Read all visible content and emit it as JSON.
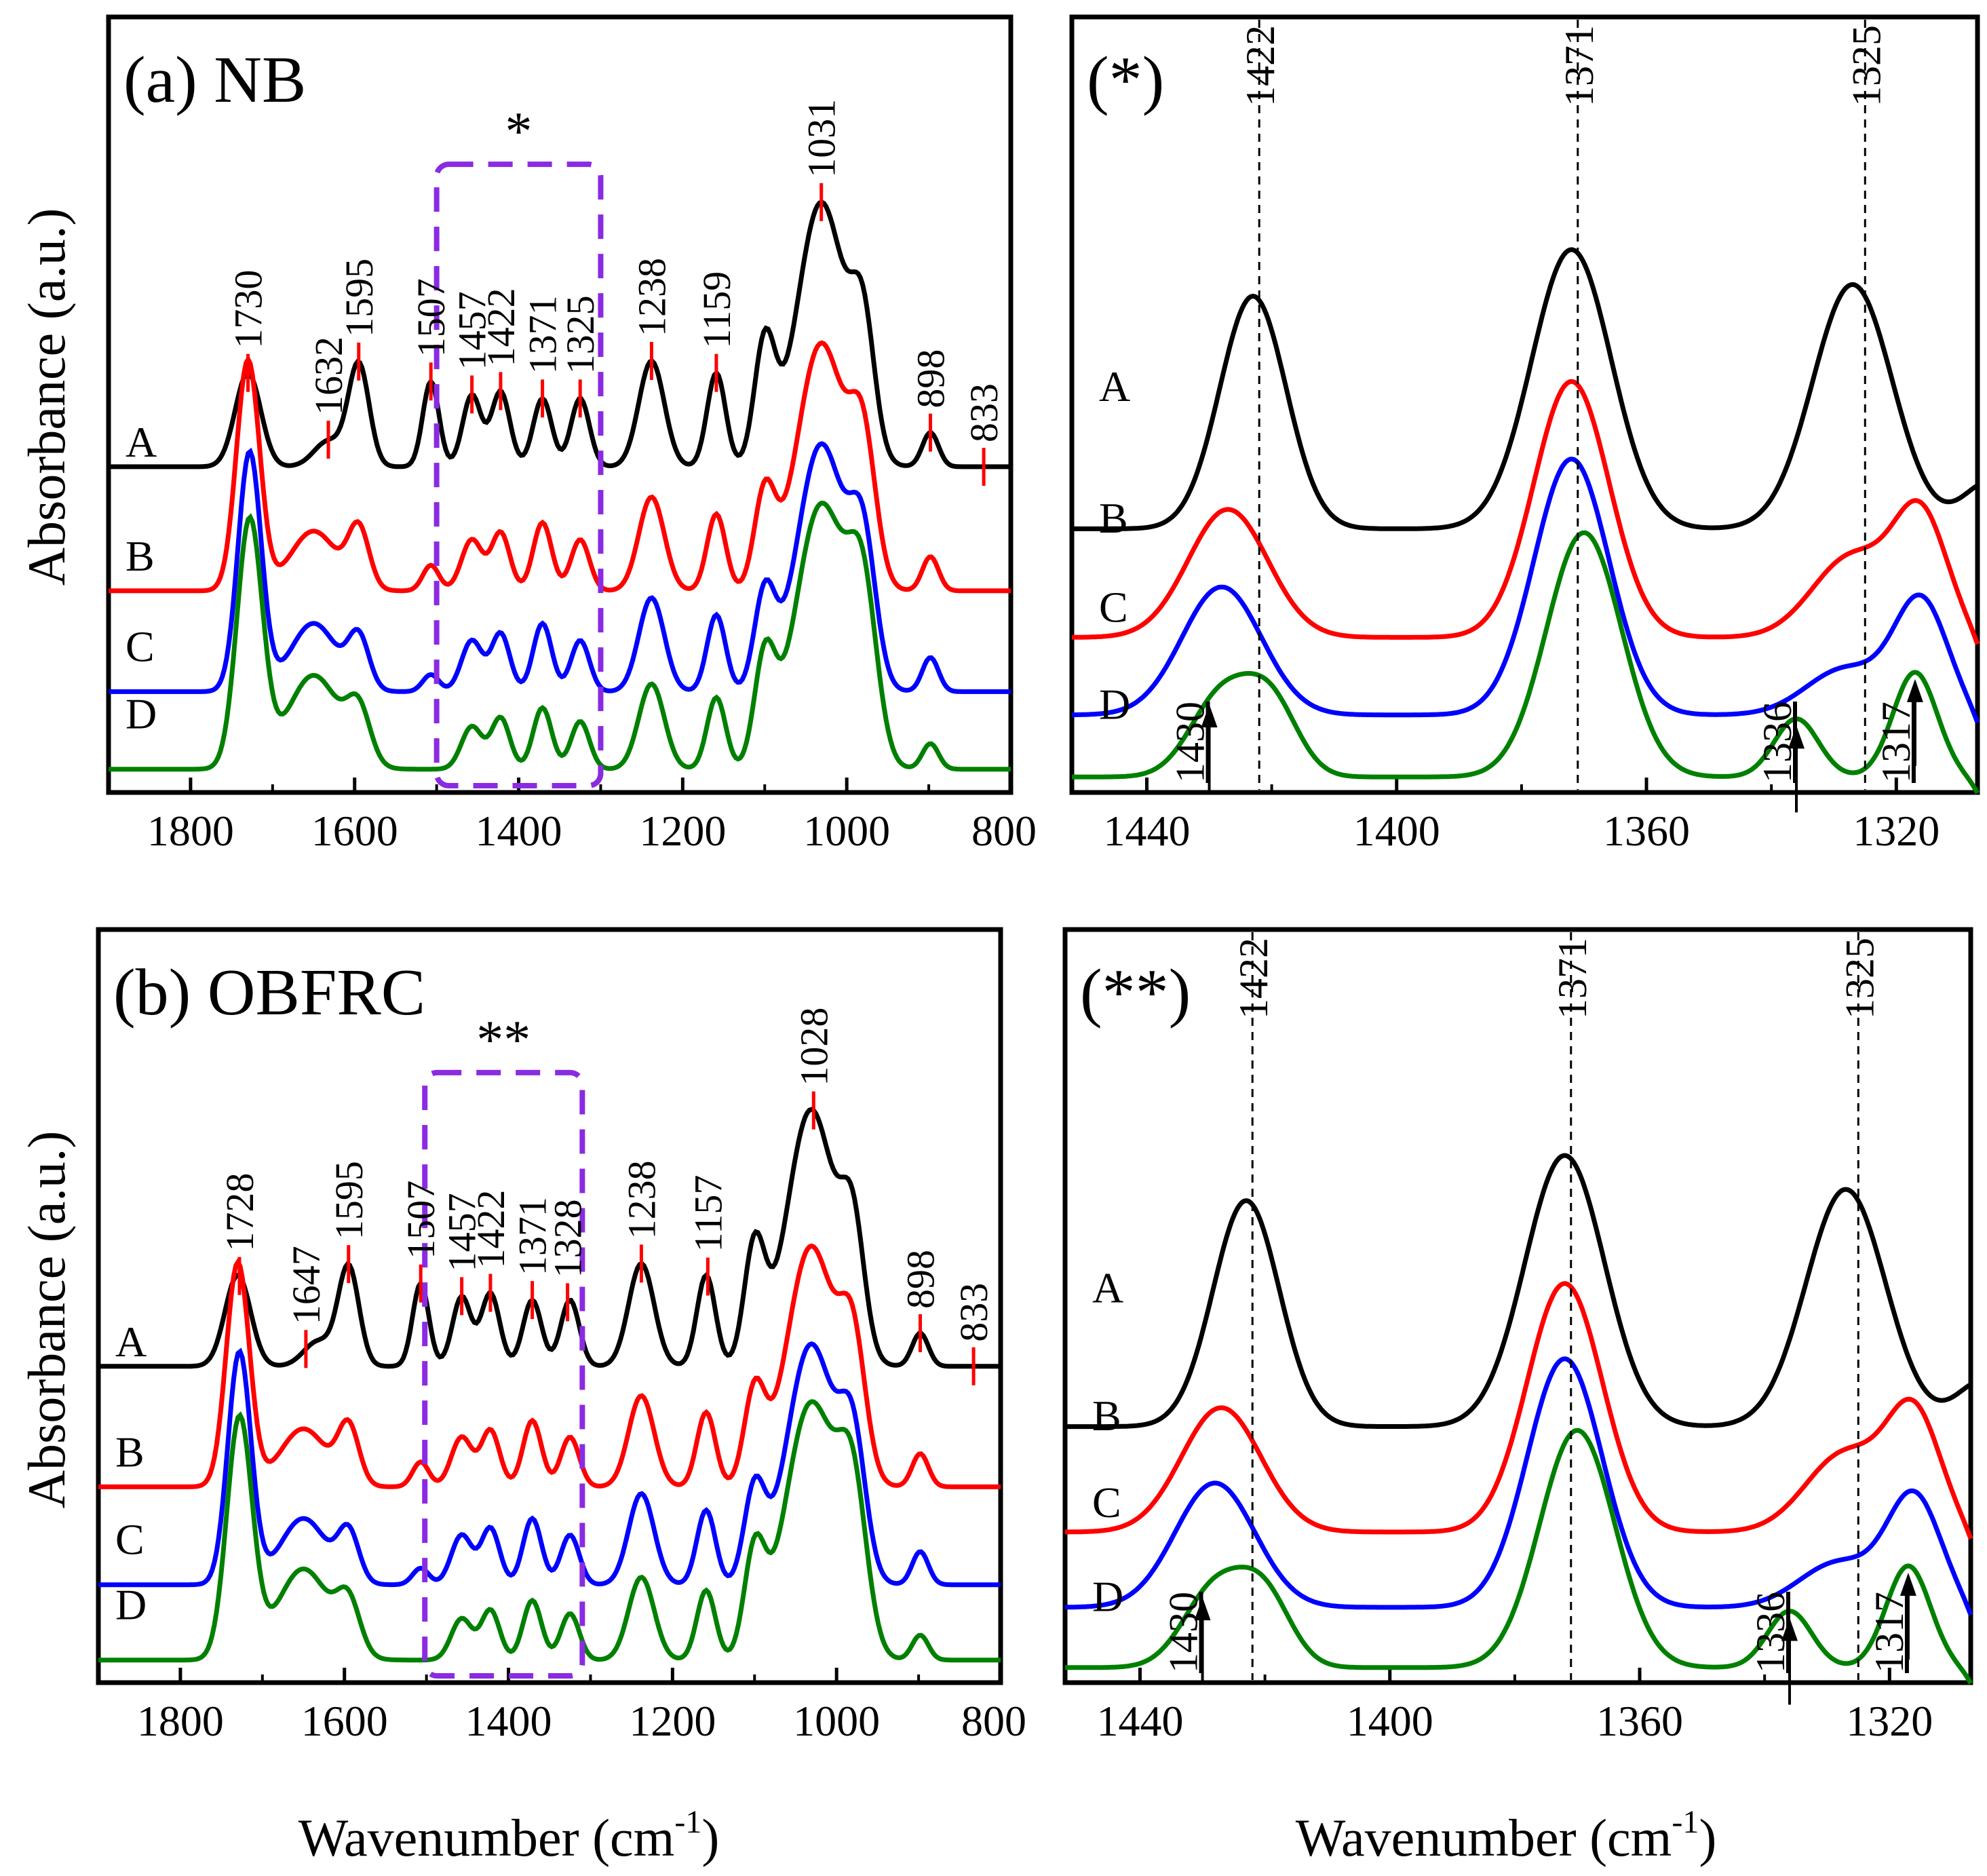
{
  "colors": {
    "A": "#000000",
    "B": "#ff0000",
    "C": "#0000ff",
    "D": "#008000",
    "marker": "#ff0000",
    "box": "#8a2be2"
  },
  "axis_labels": {
    "ylabel": "Absorbance (a.u.)",
    "xlabel_main": "Wavenumber (cm",
    "xlabel_sup": "-1",
    "xlabel_close": ")"
  },
  "chart_data": [
    {
      "id": "a",
      "type": "line",
      "title": "(a) NB",
      "box_label": "*",
      "box_range": [
        1500,
        1300
      ],
      "xlim": [
        1900,
        800
      ],
      "xticks": [
        "1800",
        "1600",
        "1400",
        "1200",
        "1000",
        "800"
      ],
      "xtick_values": [
        1800,
        1600,
        1400,
        1200,
        1000,
        800
      ],
      "series_labels": [
        "A",
        "B",
        "C",
        "D"
      ],
      "peaks": [
        {
          "label": "1730",
          "x": 1730
        },
        {
          "label": "1632",
          "x": 1632
        },
        {
          "label": "1595",
          "x": 1595
        },
        {
          "label": "1507",
          "x": 1507
        },
        {
          "label": "1457",
          "x": 1457
        },
        {
          "label": "1422",
          "x": 1422
        },
        {
          "label": "1371",
          "x": 1371
        },
        {
          "label": "1325",
          "x": 1325
        },
        {
          "label": "1238",
          "x": 1238
        },
        {
          "label": "1159",
          "x": 1159
        },
        {
          "label": "1031",
          "x": 1031
        },
        {
          "label": "898",
          "x": 898
        },
        {
          "label": "833",
          "x": 833
        }
      ]
    },
    {
      "id": "star",
      "type": "line",
      "title": "(*)",
      "xlim": [
        1452,
        1307
      ],
      "xticks": [
        "1440",
        "1400",
        "1360",
        "1320"
      ],
      "xtick_values": [
        1440,
        1400,
        1360,
        1320
      ],
      "dashed_lines": [
        {
          "label": "1422",
          "x": 1422
        },
        {
          "label": "1371",
          "x": 1371
        },
        {
          "label": "1325",
          "x": 1325
        }
      ],
      "series_labels": [
        "A",
        "B",
        "C",
        "D"
      ],
      "arrows": [
        {
          "label": "1430",
          "x": 1430
        },
        {
          "label": "1336",
          "x": 1336
        },
        {
          "label": "1317",
          "x": 1317
        }
      ]
    },
    {
      "id": "b",
      "type": "line",
      "title": "(b) OBFRC",
      "box_label": "**",
      "box_range": [
        1502,
        1310
      ],
      "xlim": [
        1900,
        800
      ],
      "xticks": [
        "1800",
        "1600",
        "1400",
        "1200",
        "1000",
        "800"
      ],
      "xtick_values": [
        1800,
        1600,
        1400,
        1200,
        1000,
        800
      ],
      "series_labels": [
        "A",
        "B",
        "C",
        "D"
      ],
      "peaks": [
        {
          "label": "1728",
          "x": 1728
        },
        {
          "label": "1647",
          "x": 1647
        },
        {
          "label": "1595",
          "x": 1595
        },
        {
          "label": "1507",
          "x": 1507
        },
        {
          "label": "1457",
          "x": 1457
        },
        {
          "label": "1422",
          "x": 1422
        },
        {
          "label": "1371",
          "x": 1371
        },
        {
          "label": "1328",
          "x": 1328
        },
        {
          "label": "1238",
          "x": 1238
        },
        {
          "label": "1157",
          "x": 1157
        },
        {
          "label": "1028",
          "x": 1028
        },
        {
          "label": "898",
          "x": 898
        },
        {
          "label": "833",
          "x": 833
        }
      ]
    },
    {
      "id": "dstar",
      "type": "line",
      "title": "(**)",
      "xlim": [
        1452,
        1307
      ],
      "xticks": [
        "1440",
        "1400",
        "1360",
        "1320"
      ],
      "xtick_values": [
        1440,
        1400,
        1360,
        1320
      ],
      "dashed_lines": [
        {
          "label": "1422",
          "x": 1422
        },
        {
          "label": "1371",
          "x": 1371
        },
        {
          "label": "1325",
          "x": 1325
        }
      ],
      "series_labels": [
        "A",
        "B",
        "C",
        "D"
      ],
      "arrows": [
        {
          "label": "1430",
          "x": 1430
        },
        {
          "label": "1336",
          "x": 1336
        },
        {
          "label": "1317",
          "x": 1317
        }
      ]
    }
  ]
}
